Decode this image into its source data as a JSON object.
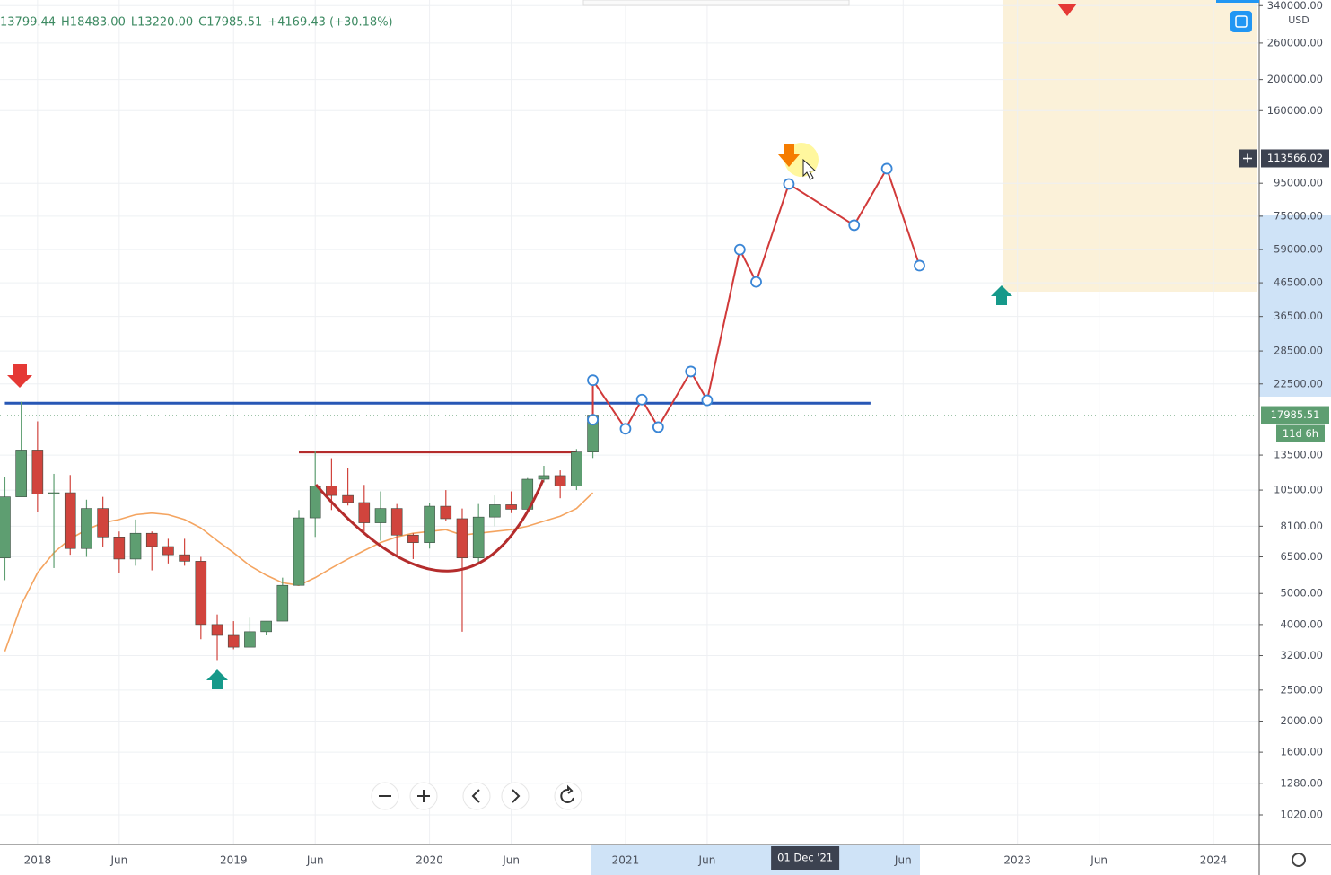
{
  "chart_data": {
    "type": "candlestick",
    "header": [
      "13799.44",
      "H18483.00",
      "L13220.00",
      "C17985.51",
      "+4169.43 (+30.18%)"
    ],
    "currency": "USD",
    "log_scale": true,
    "grid": true,
    "up_color": "#5e9e71",
    "down_color": "#d1443d",
    "x": [
      "2017-11",
      "2017-12",
      "2018-01",
      "2018-02",
      "2018-03",
      "2018-04",
      "2018-05",
      "2018-06",
      "2018-07",
      "2018-08",
      "2018-09",
      "2018-10",
      "2018-11",
      "2018-12",
      "2019-01",
      "2019-02",
      "2019-03",
      "2019-04",
      "2019-05",
      "2019-06",
      "2019-07",
      "2019-08",
      "2019-09",
      "2019-10",
      "2019-11",
      "2019-12",
      "2020-01",
      "2020-02",
      "2020-03",
      "2020-04",
      "2020-05",
      "2020-06",
      "2020-07",
      "2020-08",
      "2020-09",
      "2020-10",
      "2020-11"
    ],
    "open": [
      6450,
      10000,
      14000,
      10200,
      10300,
      6900,
      9200,
      7500,
      6400,
      7700,
      7000,
      6600,
      6300,
      4000,
      3700,
      3400,
      3800,
      4100,
      5300,
      8600,
      10800,
      10100,
      9600,
      8300,
      9200,
      7600,
      7200,
      9350,
      8550,
      6450,
      8650,
      9450,
      9150,
      11350,
      11650,
      10800,
      13799.44
    ],
    "high": [
      11500,
      19800,
      17200,
      11800,
      11700,
      9800,
      10000,
      7800,
      8500,
      7800,
      7400,
      7400,
      6500,
      4300,
      4100,
      4200,
      4100,
      5600,
      9100,
      13900,
      13200,
      12300,
      10900,
      10400,
      9500,
      7700,
      9600,
      10500,
      9200,
      9500,
      10100,
      10400,
      11450,
      12500,
      12100,
      14100,
      18483
    ],
    "low": [
      5500,
      10000,
      9000,
      6000,
      6600,
      6500,
      7000,
      5800,
      6100,
      5900,
      6200,
      6100,
      3600,
      3100,
      3350,
      3400,
      3700,
      4100,
      5300,
      7500,
      9100,
      9400,
      7800,
      7300,
      6500,
      6400,
      6900,
      8400,
      3800,
      6150,
      8100,
      8900,
      8950,
      11100,
      9900,
      10500,
      13220
    ],
    "close": [
      10000,
      14000,
      10200,
      10300,
      6900,
      9200,
      7500,
      6400,
      7700,
      7000,
      6600,
      6300,
      4000,
      3700,
      3400,
      3800,
      4100,
      5300,
      8600,
      10800,
      10100,
      9600,
      8300,
      9200,
      7600,
      7200,
      9350,
      8550,
      6450,
      8650,
      9450,
      9150,
      11350,
      11650,
      10800,
      13800,
      17985.51
    ],
    "ma": {
      "color": "#f4a460",
      "values": [
        3300,
        4600,
        5800,
        6700,
        7400,
        7900,
        8300,
        8500,
        8800,
        8900,
        8800,
        8500,
        8000,
        7300,
        6700,
        6100,
        5700,
        5400,
        5300,
        5600,
        6000,
        6400,
        6800,
        7200,
        7500,
        7700,
        7800,
        7900,
        7600,
        7700,
        7800,
        7900,
        8100,
        8400,
        8700,
        9200,
        10300
      ]
    },
    "projection": {
      "color": "#d13a3a",
      "x": [
        "2020-11",
        "2020-11",
        "2021-01",
        "2021-02",
        "2021-03",
        "2021-05",
        "2021-06",
        "2021-08",
        "2021-09",
        "2021-11",
        "2022-03",
        "2022-05",
        "2022-07"
      ],
      "values": [
        17400,
        23100,
        16300,
        20100,
        16500,
        24600,
        20000,
        59000,
        46800,
        94500,
        70300,
        105500,
        52600
      ]
    },
    "levels": [
      {
        "value": 19600,
        "color": "#2757b5",
        "x": [
          "2017-11",
          "2022-04"
        ]
      },
      {
        "value": 13780,
        "color": "#b42c2c",
        "x": [
          "2019-05",
          "2020-10"
        ]
      }
    ],
    "price_labels": [
      {
        "value": 113566.02,
        "label": "113566.02"
      },
      {
        "value": 17985.51,
        "label": "17985.51"
      }
    ],
    "countdown": "11d 6h",
    "ylim": [
      830,
      354000
    ],
    "yticks": [
      {
        "value": 340000,
        "label": "340000.00"
      },
      {
        "value": 260000,
        "label": "260000.00"
      },
      {
        "value": 200000,
        "label": "200000.00"
      },
      {
        "value": 160000,
        "label": "160000.00"
      },
      {
        "value": 95000,
        "label": "95000.00"
      },
      {
        "value": 75000,
        "label": "75000.00"
      },
      {
        "value": 59000,
        "label": "59000.00"
      },
      {
        "value": 46500,
        "label": "46500.00"
      },
      {
        "value": 36500,
        "label": "36500.00"
      },
      {
        "value": 28500,
        "label": "28500.00"
      },
      {
        "value": 22500,
        "label": "22500.00"
      },
      {
        "value": 13500,
        "label": "13500.00"
      },
      {
        "value": 10500,
        "label": "10500.00"
      },
      {
        "value": 8100,
        "label": "8100.00"
      },
      {
        "value": 6500,
        "label": "6500.00"
      },
      {
        "value": 5000,
        "label": "5000.00"
      },
      {
        "value": 4000,
        "label": "4000.00"
      },
      {
        "value": 3200,
        "label": "3200.00"
      },
      {
        "value": 2500,
        "label": "2500.00"
      },
      {
        "value": 2000,
        "label": "2000.00"
      },
      {
        "value": 1600,
        "label": "1600.00"
      },
      {
        "value": 1280,
        "label": "1280.00"
      },
      {
        "value": 1020,
        "label": "1020.00"
      }
    ],
    "xlim": [
      "2017-10-22",
      "2024-03-25"
    ],
    "xticks": [
      {
        "value": "2018-01",
        "label": "2018"
      },
      {
        "value": "2018-06",
        "label": "Jun"
      },
      {
        "value": "2019-01",
        "label": "2019"
      },
      {
        "value": "2019-06",
        "label": "Jun"
      },
      {
        "value": "2020-01",
        "label": "2020"
      },
      {
        "value": "2020-06",
        "label": "Jun"
      },
      {
        "value": "2021-01",
        "label": "2021"
      },
      {
        "value": "2021-06",
        "label": "Jun"
      },
      {
        "value": "2021-12-01",
        "label": "01 Dec '21"
      },
      {
        "value": "2022-06",
        "label": "Jun"
      },
      {
        "value": "2023-01",
        "label": "2023"
      },
      {
        "value": "2023-06",
        "label": "Jun"
      },
      {
        "value": "2024-01",
        "label": "2024"
      }
    ]
  }
}
